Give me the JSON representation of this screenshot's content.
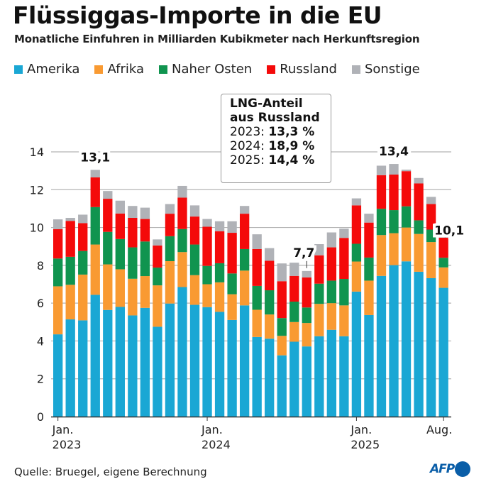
{
  "title": "Flüssiggas-Importe in die EU",
  "subtitle": "Monatliche Einfuhren in Milliarden Kubikmeter nach Herkunftsregion",
  "legend": [
    {
      "label": "Amerika",
      "color": "#1aa7d4"
    },
    {
      "label": "Afrika",
      "color": "#f99a32"
    },
    {
      "label": "Naher Osten",
      "color": "#10944f"
    },
    {
      "label": "Russland",
      "color": "#f40a0a"
    },
    {
      "label": "Sonstige",
      "color": "#b0b2b7"
    }
  ],
  "infobox": {
    "title_line1": "LNG-Anteil",
    "title_line2": "aus Russland",
    "rows": [
      {
        "year": "2023:",
        "value": "13,3 %"
      },
      {
        "year": "2024:",
        "value": "18,9 %"
      },
      {
        "year": "2025:",
        "value": "14,4 %"
      }
    ]
  },
  "source": "Quelle: Bruegel, eigene Berechnung",
  "brand": "AFP",
  "chart_data": {
    "type": "bar",
    "stacked": true,
    "title": "Flüssiggas-Importe in die EU",
    "subtitle": "Monatliche Einfuhren in Milliarden Kubikmeter nach Herkunftsregion",
    "xlabel": "",
    "ylabel": "Milliarden Kubikmeter",
    "ylim": [
      0,
      14
    ],
    "yticks": [
      0,
      2,
      4,
      6,
      8,
      10,
      12,
      14
    ],
    "grid": true,
    "legend_position": "top-left",
    "categories": [
      "2023-01",
      "2023-02",
      "2023-03",
      "2023-04",
      "2023-05",
      "2023-06",
      "2023-07",
      "2023-08",
      "2023-09",
      "2023-10",
      "2023-11",
      "2023-12",
      "2024-01",
      "2024-02",
      "2024-03",
      "2024-04",
      "2024-05",
      "2024-06",
      "2024-07",
      "2024-08",
      "2024-09",
      "2024-10",
      "2024-11",
      "2024-12",
      "2025-01",
      "2025-02",
      "2025-03",
      "2025-04",
      "2025-05",
      "2025-06",
      "2025-07",
      "2025-08"
    ],
    "xtick_labels": [
      {
        "index": 0,
        "line1": "Jan.",
        "line2": "2023"
      },
      {
        "index": 12,
        "line1": "Jan.",
        "line2": "2024"
      },
      {
        "index": 24,
        "line1": "Jan.",
        "line2": "2025"
      },
      {
        "index": 31,
        "line1": "Aug.",
        "line2": ""
      }
    ],
    "series": [
      {
        "name": "Amerika",
        "color": "#1aa7d4",
        "values": [
          4.35,
          5.14,
          5.09,
          6.44,
          5.64,
          5.8,
          5.35,
          5.75,
          4.75,
          5.98,
          6.85,
          5.91,
          5.79,
          5.54,
          5.11,
          5.88,
          4.21,
          4.12,
          3.24,
          3.96,
          3.71,
          4.25,
          4.59,
          4.25,
          6.61,
          5.37,
          7.44,
          8.01,
          8.21,
          7.66,
          7.32,
          6.81
        ]
      },
      {
        "name": "Afrika",
        "color": "#f99a32",
        "values": [
          2.54,
          1.83,
          2.42,
          2.66,
          2.41,
          1.99,
          1.94,
          1.68,
          2.19,
          2.24,
          1.85,
          1.57,
          1.21,
          1.56,
          1.36,
          1.84,
          1.44,
          1.28,
          1.03,
          1.04,
          1.24,
          1.71,
          1.41,
          1.63,
          1.59,
          1.82,
          2.16,
          1.69,
          1.79,
          2.0,
          1.91,
          1.08
        ]
      },
      {
        "name": "Naher Osten",
        "color": "#10944f",
        "values": [
          1.47,
          1.48,
          1.25,
          1.98,
          1.72,
          1.6,
          1.66,
          1.83,
          0.94,
          1.32,
          1.22,
          1.62,
          0.97,
          1.01,
          1.1,
          1.14,
          1.26,
          1.28,
          0.94,
          1.08,
          0.82,
          1.07,
          1.19,
          1.4,
          0.94,
          1.22,
          1.39,
          1.22,
          1.12,
          0.72,
          0.66,
          0.51
        ]
      },
      {
        "name": "Russland",
        "color": "#f40a0a",
        "values": [
          1.55,
          1.9,
          1.47,
          1.57,
          1.75,
          1.35,
          1.56,
          1.19,
          1.17,
          1.19,
          1.66,
          1.48,
          2.07,
          1.69,
          2.15,
          1.87,
          1.95,
          1.56,
          1.95,
          1.36,
          1.59,
          1.5,
          1.76,
          2.17,
          2.03,
          1.85,
          1.78,
          1.88,
          1.86,
          1.95,
          1.35,
          1.06
        ]
      },
      {
        "name": "Sonstige",
        "color": "#b0b2b7",
        "values": [
          0.52,
          0.16,
          0.45,
          0.4,
          0.41,
          0.68,
          0.63,
          0.6,
          0.32,
          0.51,
          0.62,
          0.59,
          0.41,
          0.53,
          0.61,
          0.41,
          0.78,
          0.67,
          0.94,
          0.7,
          0.34,
          0.59,
          0.79,
          0.49,
          0.37,
          0.47,
          0.5,
          0.56,
          0.08,
          0.29,
          0.38,
          0.62
        ]
      }
    ],
    "annotations": [
      {
        "index": 3,
        "text": "13,1"
      },
      {
        "index": 20,
        "text": "7,7"
      },
      {
        "index": 27,
        "text": "13,4"
      },
      {
        "index": 31,
        "text": "10,1"
      }
    ]
  }
}
